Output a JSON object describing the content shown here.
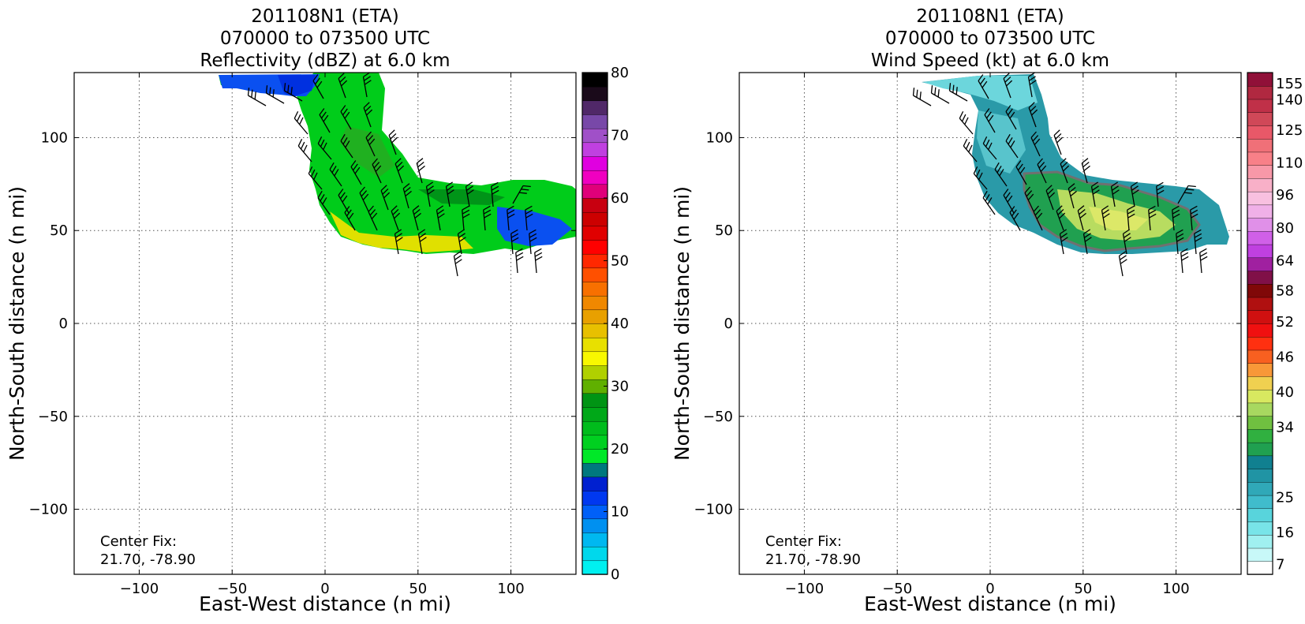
{
  "chart_data": [
    {
      "type": "heatmap",
      "title": [
        "201108N1 (ETA)",
        "070000 to 073500 UTC",
        "Reflectivity (dBZ) at 6.0 km"
      ],
      "xlabel": "East-West distance (n mi)",
      "ylabel": "North-South distance (n mi)",
      "xlim": [
        -135,
        135
      ],
      "ylim": [
        -135,
        135
      ],
      "xticks": [
        -100,
        -50,
        0,
        50,
        100
      ],
      "yticks": [
        -100,
        -50,
        0,
        50,
        100
      ],
      "xtick_labels": [
        "−100",
        "−50",
        "0",
        "50",
        "100"
      ],
      "ytick_labels": [
        "−100",
        "−50",
        "0",
        "50",
        "100"
      ],
      "grid": true,
      "annotation": [
        "Center Fix:",
        "21.70, -78.90"
      ],
      "colorbar": {
        "min": 0,
        "max": 80,
        "step": 5,
        "tick_values": [
          0,
          10,
          20,
          30,
          40,
          50,
          60,
          70,
          80
        ],
        "tick_labels": [
          "0",
          "10",
          "20",
          "30",
          "40",
          "50",
          "60",
          "70",
          "80"
        ],
        "colors": [
          "#00f0f0",
          "#00d8ec",
          "#00b8f0",
          "#0090f0",
          "#0060f8",
          "#0038f0",
          "#0020d0",
          "#00787e",
          "#00e828",
          "#00d020",
          "#00bc1c",
          "#00a818",
          "#009414",
          "#60b000",
          "#b0d000",
          "#f8f800",
          "#e8e000",
          "#e8c000",
          "#e8a000",
          "#f08800",
          "#f87000",
          "#ff5000",
          "#ff2800",
          "#ff0000",
          "#e00000",
          "#cc0000",
          "#c80010",
          "#e0007a",
          "#f000c0",
          "#e000e0",
          "#c040e0",
          "#a050c8",
          "#7848a8",
          "#502868",
          "#1a0a1a",
          "#000000"
        ],
        "bin_count": 16
      },
      "field": [
        {
          "x": -45,
          "y": 127,
          "v": 8
        },
        {
          "x": -22,
          "y": 125,
          "v": 12
        },
        {
          "x": 15,
          "y": 115,
          "v": 27
        },
        {
          "x": 25,
          "y": 100,
          "v": 24
        },
        {
          "x": 60,
          "y": 70,
          "v": 25
        },
        {
          "x": 100,
          "y": 60,
          "v": 9
        },
        {
          "x": 40,
          "y": 48,
          "v": 40
        },
        {
          "x": 70,
          "y": 45,
          "v": 38
        }
      ]
    },
    {
      "type": "heatmap",
      "title": [
        "201108N1 (ETA)",
        "070000 to 073500 UTC",
        "Wind Speed (kt) at 6.0 km"
      ],
      "xlabel": "East-West distance (n mi)",
      "ylabel": "North-South distance (n mi)",
      "xlim": [
        -135,
        135
      ],
      "ylim": [
        -135,
        135
      ],
      "xticks": [
        -100,
        -50,
        0,
        50,
        100
      ],
      "yticks": [
        -100,
        -50,
        0,
        50,
        100
      ],
      "xtick_labels": [
        "−100",
        "−50",
        "0",
        "50",
        "100"
      ],
      "ytick_labels": [
        "−100",
        "−50",
        "0",
        "50",
        "100"
      ],
      "grid": true,
      "annotation": [
        "Center Fix:",
        "21.70, -78.90"
      ],
      "colorbar": {
        "tick_labels": [
          "7",
          "16",
          "25",
          "34",
          "40",
          "46",
          "52",
          "58",
          "64",
          "80",
          "96",
          "110",
          "125",
          "140",
          "155"
        ],
        "colors": [
          "#ffffff",
          "#c8f8f8",
          "#a0f0f0",
          "#78e4e8",
          "#58d4dc",
          "#40bccc",
          "#30a8b8",
          "#2094a4",
          "#108090",
          "#20a050",
          "#30b040",
          "#70c040",
          "#a8d860",
          "#d8e860",
          "#f0d050",
          "#f89838",
          "#f86020",
          "#ff3010",
          "#f01010",
          "#d01010",
          "#b01010",
          "#800808",
          "#801048",
          "#a020a0",
          "#c040e0",
          "#d060e8",
          "#e090e8",
          "#f0b0e8",
          "#f8c0e0",
          "#f8b0c8",
          "#f898a8",
          "#f88088",
          "#f07078",
          "#e85868",
          "#d04858",
          "#c03048",
          "#b02840",
          "#901038"
        ],
        "label_bins": [
          0,
          2,
          5,
          8,
          10,
          12,
          14,
          16,
          18,
          20,
          22,
          24,
          26,
          28,
          30
        ],
        "label_positions": [
          0.02,
          0.083,
          0.153,
          0.293,
          0.363,
          0.433,
          0.503,
          0.565,
          0.625,
          0.69,
          0.756,
          0.82,
          0.885,
          0.946,
          0.978
        ]
      },
      "field": [
        {
          "x": -10,
          "y": 125,
          "v": 22
        },
        {
          "x": 0,
          "y": 105,
          "v": 20
        },
        {
          "x": 30,
          "y": 78,
          "v": 34
        },
        {
          "x": 60,
          "y": 60,
          "v": 40
        },
        {
          "x": 85,
          "y": 58,
          "v": 38
        },
        {
          "x": 115,
          "y": 55,
          "v": 24
        }
      ]
    }
  ]
}
